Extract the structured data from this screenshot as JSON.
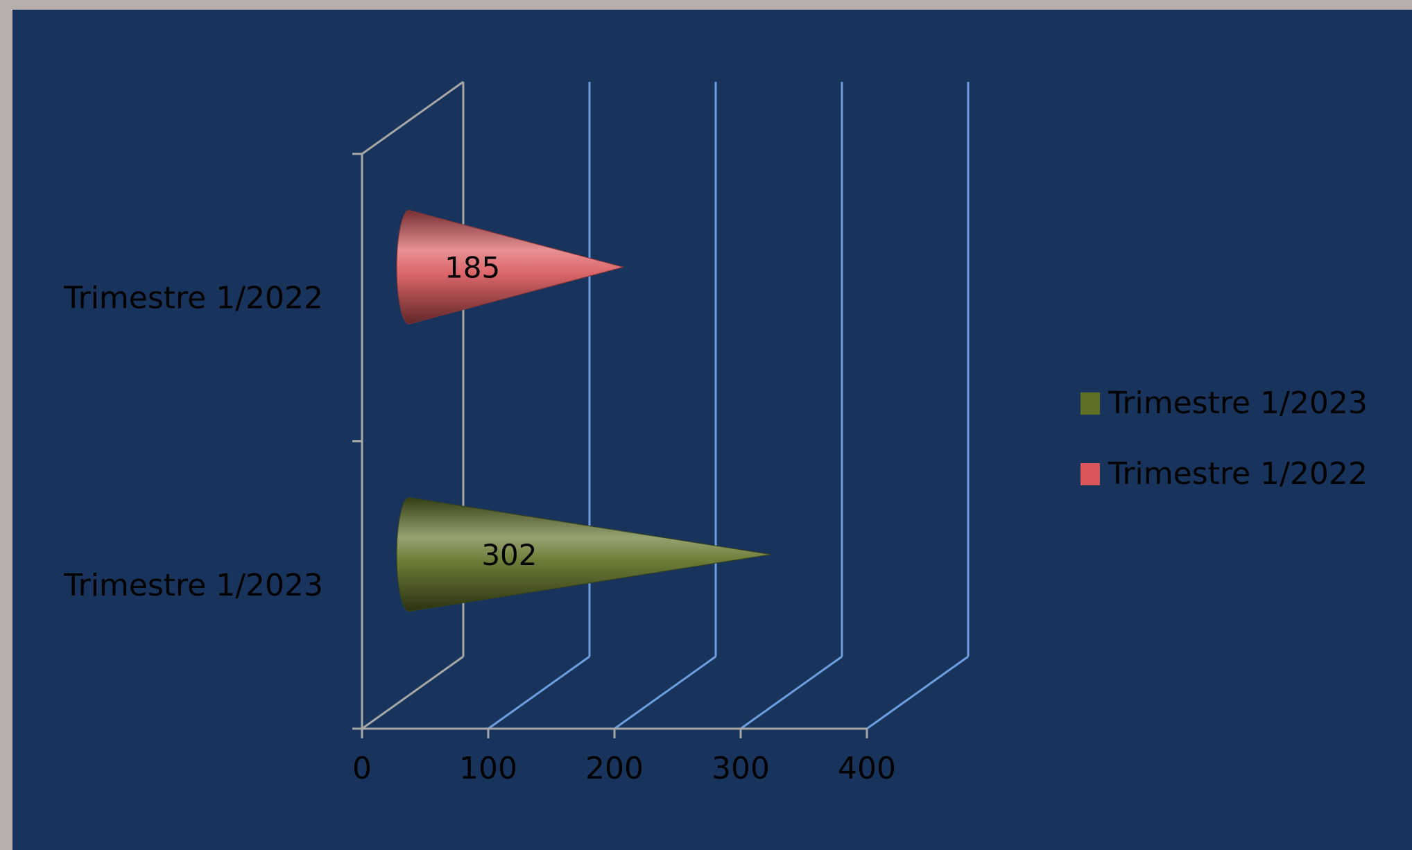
{
  "chart_data": {
    "type": "bar",
    "orientation": "horizontal",
    "shape": "3d-cone",
    "categories": [
      "Trimestre 1/2023",
      "Trimestre 1/2022"
    ],
    "series": [
      {
        "name": "Trimestre 1/2023",
        "category": "Trimestre 1/2023",
        "value": 302,
        "color": "#5f7024"
      },
      {
        "name": "Trimestre 1/2022",
        "category": "Trimestre 1/2022",
        "value": 185,
        "color": "#d9565a"
      }
    ],
    "x_ticks": [
      "0",
      "100",
      "200",
      "300",
      "400"
    ],
    "xlim": [
      0,
      400
    ],
    "grid": true,
    "legend": {
      "position": "right",
      "entries": [
        "Trimestre 1/2023",
        "Trimestre 1/2022"
      ]
    },
    "title": "",
    "xlabel": "",
    "ylabel": ""
  },
  "colors": {
    "background": "#18345c",
    "frame": "#b7aeae",
    "gridline": "#6d9fe0",
    "axis": "#a7a7a7"
  }
}
